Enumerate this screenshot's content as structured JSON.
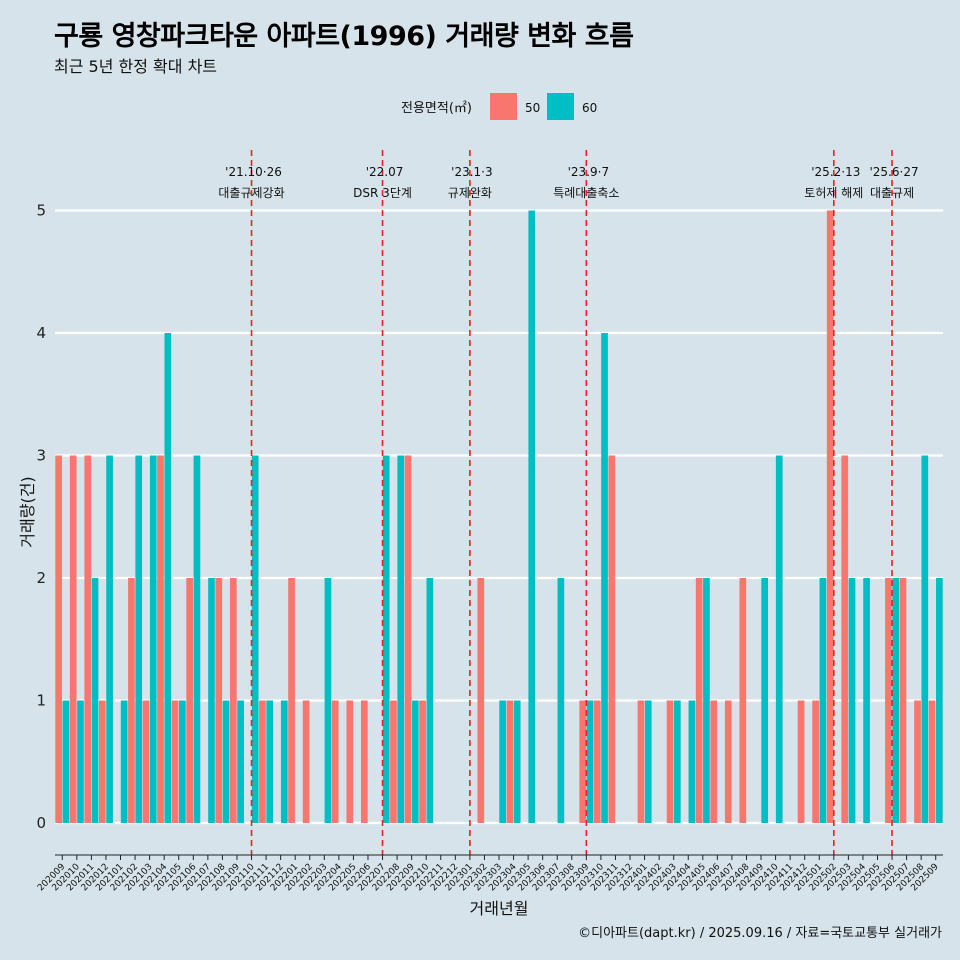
{
  "title": "구룡 영창파크타운 아파트(1996) 거래량 변화 흐름",
  "subtitle": "최근 5년 한정 확대 차트",
  "caption": "©디아파트(dapt.kr) / 2025.09.16 / 자료=국토교통부 실거래가",
  "chart_data": {
    "type": "bar",
    "xlabel": "거래년월",
    "ylabel": "거래량(건)",
    "ylim": [
      0,
      5
    ],
    "yticks": [
      0,
      1,
      2,
      3,
      4,
      5
    ],
    "legend": {
      "title": "전용면적(㎡)",
      "position": "top"
    },
    "categories": [
      "202009",
      "202010",
      "202011",
      "202012",
      "202101",
      "202102",
      "202103",
      "202104",
      "202105",
      "202106",
      "202107",
      "202108",
      "202109",
      "202110",
      "202111",
      "202112",
      "202201",
      "202202",
      "202203",
      "202204",
      "202205",
      "202206",
      "202207",
      "202208",
      "202209",
      "202210",
      "202211",
      "202212",
      "202301",
      "202302",
      "202303",
      "202304",
      "202305",
      "202306",
      "202307",
      "202308",
      "202309",
      "202310",
      "202311",
      "202312",
      "202401",
      "202402",
      "202403",
      "202404",
      "202405",
      "202406",
      "202407",
      "202408",
      "202409",
      "202410",
      "202411",
      "202412",
      "202501",
      "202502",
      "202503",
      "202504",
      "202505",
      "202506",
      "202507",
      "202508",
      "202509"
    ],
    "series": [
      {
        "name": "50",
        "color": "#f8766d",
        "values": [
          3,
          3,
          3,
          1,
          0,
          2,
          1,
          3,
          1,
          2,
          0,
          2,
          2,
          0,
          1,
          0,
          2,
          1,
          0,
          1,
          1,
          1,
          0,
          1,
          3,
          1,
          0,
          0,
          0,
          2,
          0,
          1,
          0,
          0,
          0,
          0,
          1,
          1,
          3,
          0,
          1,
          0,
          1,
          0,
          2,
          1,
          1,
          2,
          0,
          0,
          0,
          1,
          1,
          5,
          3,
          0,
          0,
          2,
          2,
          1,
          1
        ]
      },
      {
        "name": "60",
        "color": "#00bfc4",
        "values": [
          1,
          1,
          2,
          3,
          1,
          3,
          3,
          4,
          1,
          3,
          2,
          1,
          1,
          3,
          1,
          1,
          0,
          0,
          2,
          0,
          0,
          0,
          3,
          3,
          1,
          2,
          0,
          0,
          0,
          0,
          1,
          1,
          5,
          0,
          2,
          0,
          1,
          4,
          0,
          0,
          1,
          0,
          1,
          1,
          2,
          0,
          0,
          0,
          2,
          3,
          0,
          0,
          2,
          0,
          2,
          2,
          0,
          2,
          0,
          3,
          2
        ]
      }
    ],
    "events": [
      {
        "label_line1": "'21.10·26",
        "label_line2": "대출규제강화",
        "position": 13
      },
      {
        "label_line1": "'22.07",
        "label_line2": "DSR 3단계",
        "position": 22
      },
      {
        "label_line1": "'23.1·3",
        "label_line2": "규제완화",
        "position": 28
      },
      {
        "label_line1": "'23.9·7",
        "label_line2": "특례대출축소",
        "position": 36
      },
      {
        "label_line1": "'25.2·13",
        "label_line2": "토허제 해제",
        "position": 53
      },
      {
        "label_line1": "'25.6·27",
        "label_line2": "대출규제",
        "position": 57
      }
    ]
  }
}
